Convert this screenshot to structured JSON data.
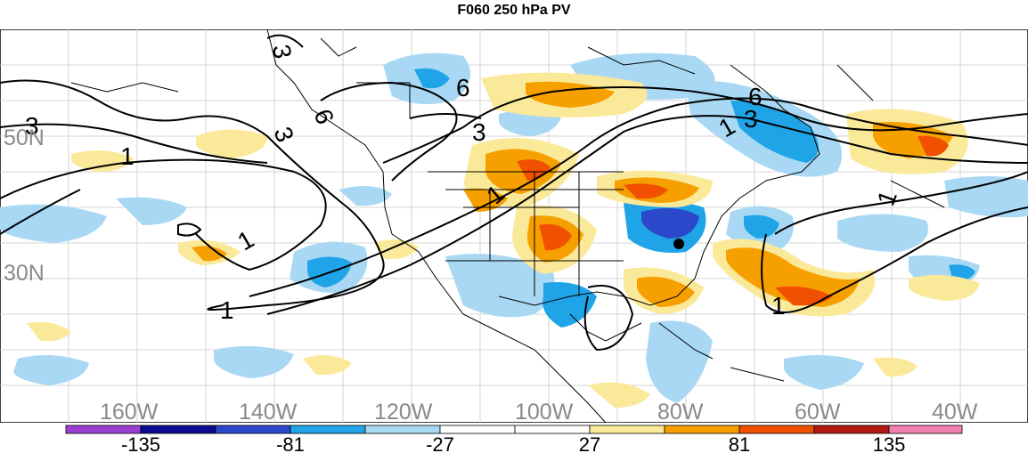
{
  "title": "F060 250 hPa PV",
  "lat_labels": [
    "50N",
    "30N"
  ],
  "lon_labels": [
    "160W",
    "140W",
    "120W",
    "100W",
    "80W",
    "60W",
    "40W"
  ],
  "contour_labels": [
    "3",
    "3",
    "6",
    "3",
    "6",
    "3",
    "1",
    "1",
    "1",
    "1",
    "6",
    "3",
    "1",
    "1"
  ],
  "colorbar": {
    "ticks": [
      "-135",
      "-81",
      "-27",
      "27",
      "81",
      "135"
    ],
    "colors": [
      "#9a3fd1",
      "#0b0b8f",
      "#2a48c9",
      "#20a4e8",
      "#a9d8f4",
      "#ffffff",
      "#ffffff",
      "#fbe99a",
      "#f6a000",
      "#f05000",
      "#b01a10",
      "#f080b0"
    ]
  },
  "colors": {
    "land_border": "#000000",
    "grid": "#bfbfbf",
    "positive_light": "#fbe99a",
    "positive_mid": "#f6a000",
    "positive_strong": "#f05000",
    "negative_light": "#a9d8f4",
    "negative_mid": "#20a4e8",
    "negative_strong": "#2a48c9"
  }
}
